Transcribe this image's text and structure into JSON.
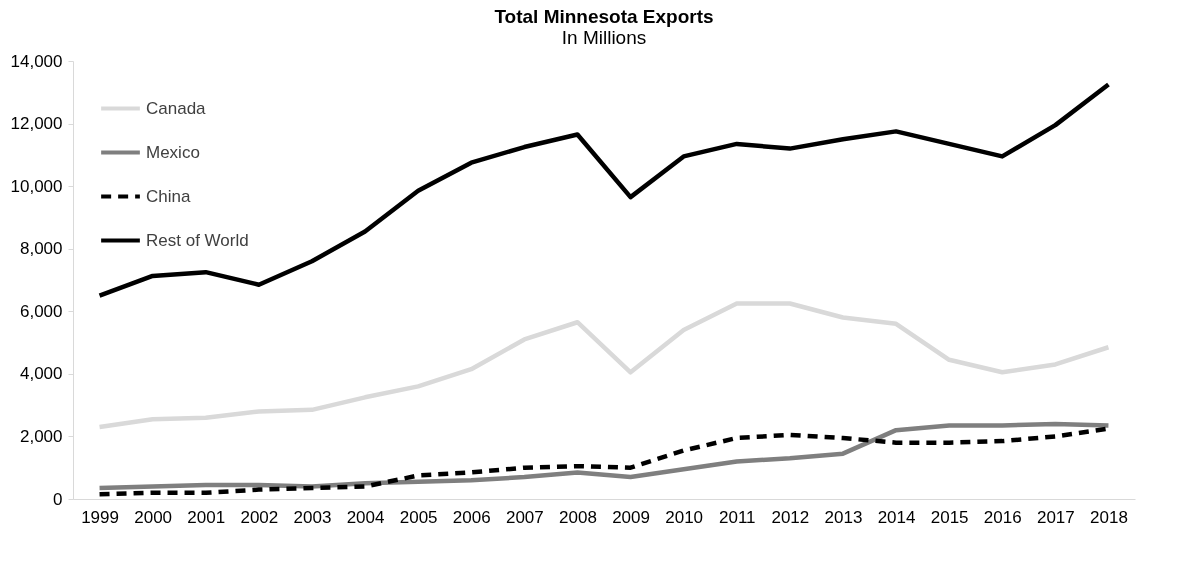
{
  "chart_data": {
    "type": "line",
    "title": "Total Minnesota Exports",
    "subtitle": "In Millions",
    "categories": [
      "1999",
      "2000",
      "2001",
      "2002",
      "2003",
      "2004",
      "2005",
      "2006",
      "2007",
      "2008",
      "2009",
      "2010",
      "2011",
      "2012",
      "2013",
      "2014",
      "2015",
      "2016",
      "2017",
      "2018"
    ],
    "series": [
      {
        "name": "Canada",
        "color": "#d9d9d9",
        "line_style": "solid",
        "values": [
          2300,
          2550,
          2600,
          2800,
          2850,
          3250,
          3600,
          4150,
          5100,
          5650,
          4050,
          5400,
          6250,
          6250,
          5800,
          5600,
          4450,
          4050,
          4300,
          4850
        ]
      },
      {
        "name": "Mexico",
        "color": "#7f7f7f",
        "line_style": "solid",
        "values": [
          350,
          400,
          450,
          450,
          400,
          500,
          550,
          600,
          700,
          850,
          700,
          950,
          1200,
          1300,
          1450,
          2200,
          2350,
          2350,
          2400,
          2350
        ]
      },
      {
        "name": "China",
        "color": "#000000",
        "line_style": "dashed",
        "values": [
          150,
          200,
          200,
          300,
          350,
          400,
          750,
          850,
          1000,
          1050,
          1000,
          1550,
          1950,
          2050,
          1950,
          1800,
          1800,
          1850,
          2000,
          2250
        ]
      },
      {
        "name": "Rest of World",
        "color": "#000000",
        "line_style": "solid",
        "values": [
          6500,
          7130,
          7250,
          6850,
          7600,
          8550,
          9850,
          10750,
          11250,
          11650,
          9650,
          10950,
          11350,
          11200,
          11500,
          11750,
          11350,
          10950,
          11950,
          13250
        ]
      }
    ],
    "ylim": [
      0,
      14000
    ],
    "yticks": [
      0,
      {
        "value": 2000,
        "label": "2,000"
      },
      {
        "value": 4000,
        "label": "4,000"
      },
      {
        "value": 6000,
        "label": "6,000"
      },
      {
        "value": 8000,
        "label": "8,000"
      },
      {
        "value": 10000,
        "label": "10,000"
      },
      {
        "value": 12000,
        "label": "12,000"
      },
      {
        "value": 14000,
        "label": "14,000"
      }
    ],
    "grid": false,
    "legend": "top left",
    "marker": "none"
  }
}
